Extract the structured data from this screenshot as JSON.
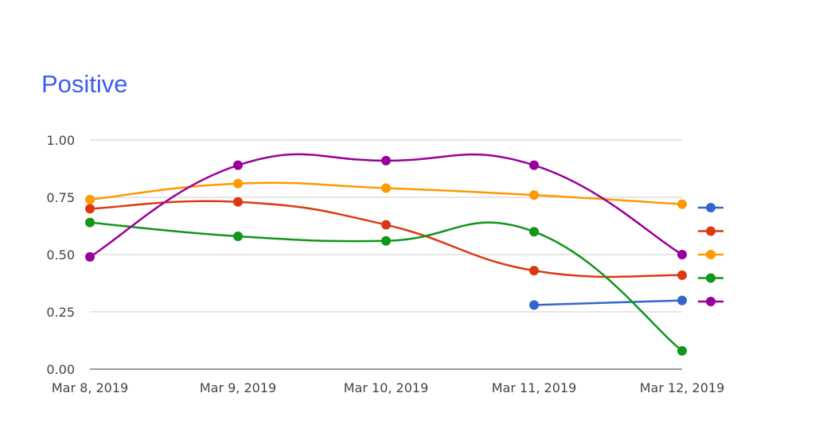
{
  "chart_data": {
    "type": "line",
    "title": "Positive",
    "xlabel": "",
    "ylabel": "",
    "categories": [
      "Mar 8, 2019",
      "Mar 9, 2019",
      "Mar 10, 2019",
      "Mar 11, 2019",
      "Mar 12, 2019"
    ],
    "y_ticks": [
      "0.00",
      "0.25",
      "0.50",
      "0.75",
      "1.00"
    ],
    "ylim": [
      0,
      1
    ],
    "grid": true,
    "curve": "smooth",
    "legend_position": "right",
    "series": [
      {
        "color": "#3366cc",
        "values": [
          null,
          null,
          null,
          0.28,
          0.3
        ]
      },
      {
        "color": "#dc3912",
        "values": [
          0.7,
          0.73,
          0.63,
          0.43,
          0.41
        ]
      },
      {
        "color": "#ff9900",
        "values": [
          0.74,
          0.81,
          0.79,
          0.76,
          0.72
        ]
      },
      {
        "color": "#109618",
        "values": [
          0.64,
          0.58,
          0.56,
          0.6,
          0.08
        ]
      },
      {
        "color": "#990099",
        "values": [
          0.49,
          0.89,
          0.91,
          0.89,
          0.5
        ]
      }
    ]
  }
}
